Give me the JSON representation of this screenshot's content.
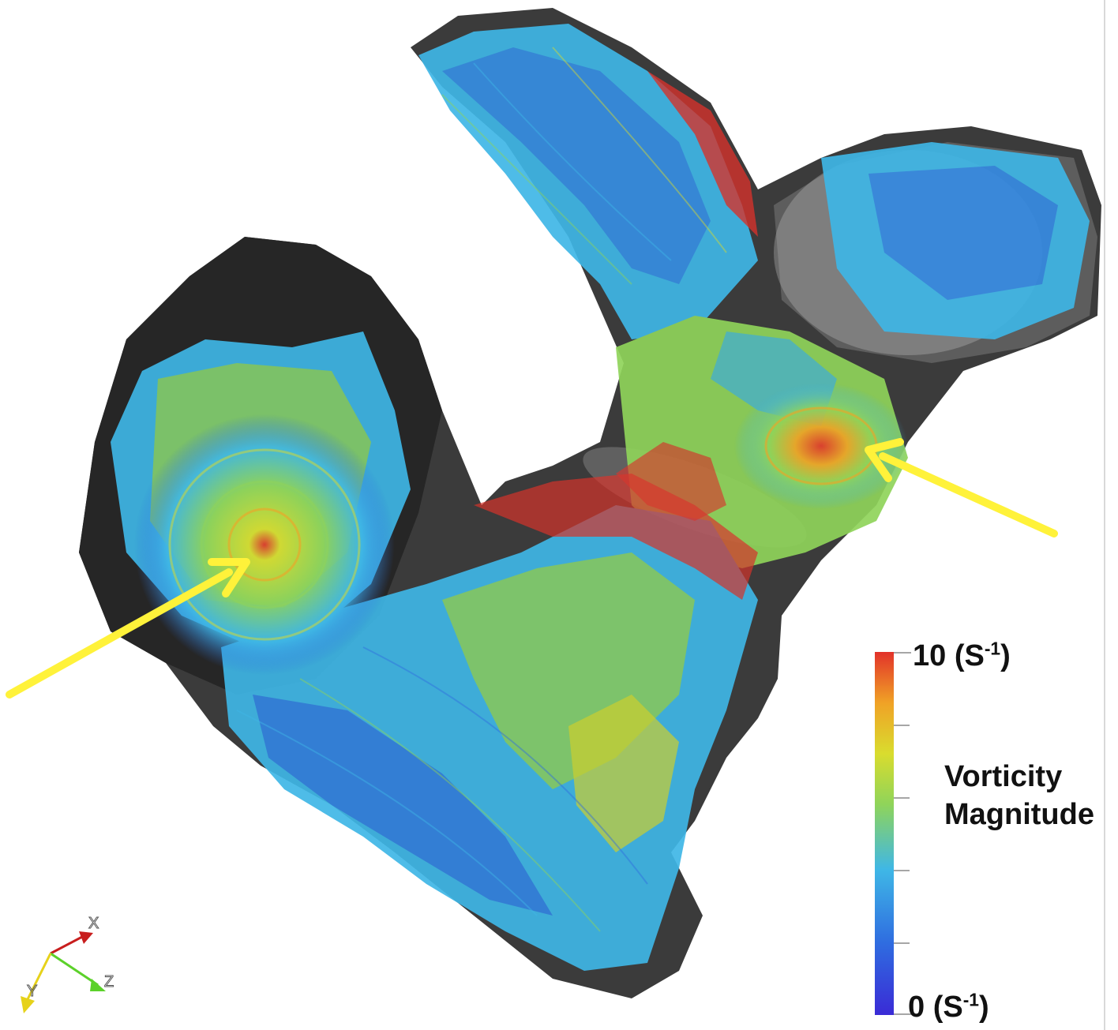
{
  "colorbar": {
    "title_line1": "Vorticity",
    "title_line2": "Magnitude",
    "max_value": "10",
    "min_value": "0",
    "unit_open": "(S",
    "unit_exp": "-1",
    "unit_close": ")",
    "colors": [
      "#3a2bd6",
      "#2f6de0",
      "#3fb7e6",
      "#8fd45a",
      "#d9dc2e",
      "#f0a226",
      "#e2322a"
    ]
  },
  "arrows": {
    "color": "#fff23a"
  },
  "axes": {
    "x_label": "X",
    "y_label": "Y",
    "z_label": "Z",
    "x_color": "#c81e1e",
    "y_color": "#e6d21a",
    "z_color": "#5cd12a"
  }
}
